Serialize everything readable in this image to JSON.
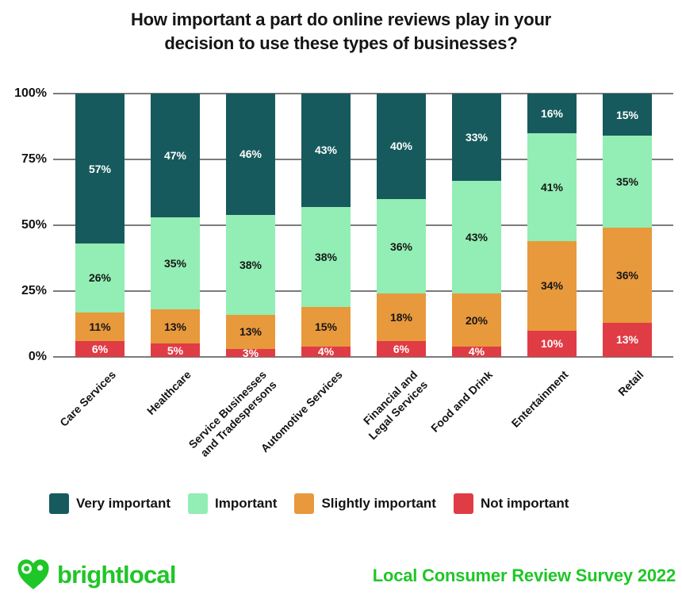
{
  "chart_data": {
    "type": "bar",
    "stacked": true,
    "title": "How important a part do online reviews play in your\ndecision to use these types of businesses?",
    "categories": [
      "Care Services",
      "Healthcare",
      "Service Businesses\nand Tradespersons",
      "Automotive Services",
      "Financial and\nLegal Services",
      "Food and Drink",
      "Entertainment",
      "Retail"
    ],
    "series": [
      {
        "name": "Very important",
        "color": "#175A5D",
        "label_color": "#FFFFFF",
        "values": [
          57,
          47,
          46,
          43,
          40,
          33,
          16,
          15
        ]
      },
      {
        "name": "Important",
        "color": "#92EEB4",
        "label_color": "#161616",
        "values": [
          26,
          35,
          38,
          38,
          36,
          43,
          41,
          35
        ]
      },
      {
        "name": "Slightly important",
        "color": "#E8993C",
        "label_color": "#161616",
        "values": [
          11,
          13,
          13,
          15,
          18,
          20,
          34,
          36
        ]
      },
      {
        "name": "Not important",
        "color": "#E03C45",
        "label_color": "#FFFFFF",
        "values": [
          6,
          5,
          3,
          4,
          6,
          4,
          10,
          13
        ]
      }
    ],
    "value_suffix": "%",
    "y_ticks": [
      {
        "label": "100%",
        "value": 100
      },
      {
        "label": "75%",
        "value": 75
      },
      {
        "label": "50%",
        "value": 50
      },
      {
        "label": "25%",
        "value": 25
      },
      {
        "label": "0%",
        "value": 0
      }
    ],
    "ylim": [
      0,
      100
    ],
    "grid": true,
    "gridline_color": "#7B7B7B",
    "legend_position": "bottom"
  },
  "footer": {
    "logo_text": "brightlocal",
    "caption": "Local Consumer Review Survey 2022",
    "brand_green": "#1FC627"
  }
}
